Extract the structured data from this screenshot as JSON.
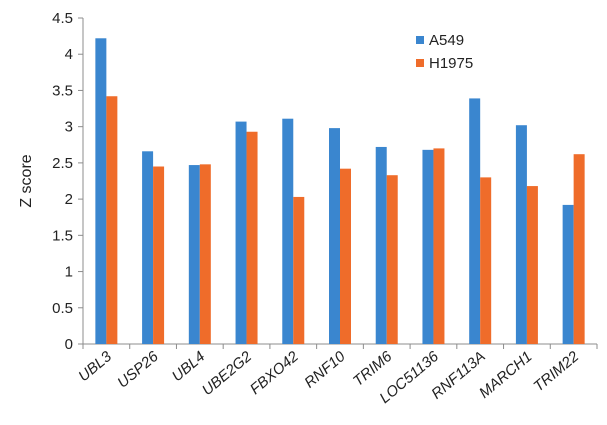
{
  "chart_data": {
    "type": "bar",
    "title": "",
    "xlabel": "",
    "ylabel": "Z score",
    "ylim": [
      0,
      4.5
    ],
    "yticks": [
      "0",
      "0.5",
      "1",
      "1.5",
      "2",
      "2.5",
      "3",
      "3.5",
      "4",
      "4.5"
    ],
    "grid": false,
    "legend_position": "top-right",
    "categories": [
      "UBL3",
      "USP26",
      "UBL4",
      "UBE2G2",
      "FBXO42",
      "RNF10",
      "TRIM6",
      "LOC51136",
      "RNF113A",
      "MARCH1",
      "TRIM22"
    ],
    "series": [
      {
        "name": "A549",
        "color": "#3a86cf",
        "values": [
          4.22,
          2.66,
          2.47,
          3.07,
          3.11,
          2.98,
          2.72,
          2.68,
          3.39,
          3.02,
          1.92
        ]
      },
      {
        "name": "H1975",
        "color": "#ef6c2a",
        "values": [
          3.42,
          2.45,
          2.48,
          2.93,
          2.03,
          2.42,
          2.33,
          2.7,
          2.3,
          2.18,
          2.62
        ]
      }
    ]
  }
}
